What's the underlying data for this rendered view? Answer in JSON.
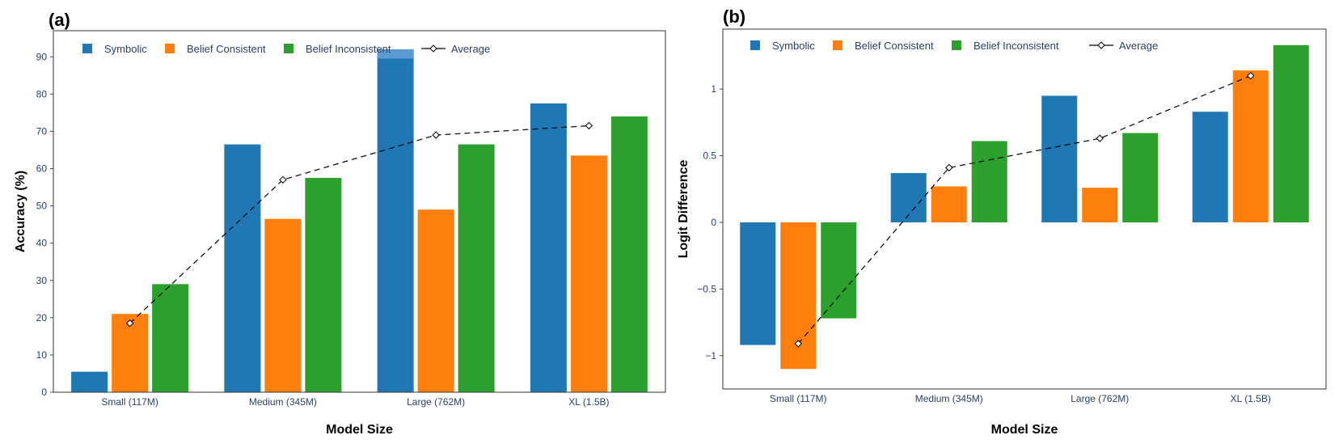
{
  "colors": {
    "symbolic": "#1f77b4",
    "belief_consistent": "#ff7f0e",
    "belief_inconsistent": "#2ca02c",
    "average": "#000000",
    "highlight": "#5b9bd5"
  },
  "chart_data": [
    {
      "id": "a",
      "panel_label": "(a)",
      "type": "bar",
      "xlabel": "Model Size",
      "ylabel": "Accuracy (%)",
      "ylim": [
        0,
        97
      ],
      "yticks": [
        0,
        10,
        20,
        30,
        40,
        50,
        60,
        70,
        80,
        90
      ],
      "ytick_labels": [
        "0",
        "10",
        "20",
        "30",
        "40",
        "50",
        "60",
        "70",
        "80",
        "90"
      ],
      "categories": [
        "Small (117M)",
        "Medium (345M)",
        "Large (762M)",
        "XL (1.5B)"
      ],
      "series": [
        {
          "name": "Symbolic",
          "key": "symbolic",
          "values": [
            5.5,
            66.5,
            92.0,
            77.5
          ]
        },
        {
          "name": "Belief Consistent",
          "key": "belief_consistent",
          "values": [
            21.0,
            46.5,
            49.0,
            63.5
          ]
        },
        {
          "name": "Belief Inconsistent",
          "key": "belief_inconsistent",
          "values": [
            29.0,
            57.5,
            66.5,
            74.0
          ]
        }
      ],
      "average": {
        "name": "Average",
        "values": [
          18.5,
          57.0,
          69.0,
          71.5
        ]
      },
      "highlight": {
        "category_index": 2,
        "series_index": 0,
        "from": 89.5,
        "to": 92.0
      },
      "legend_location": "top-left",
      "grid": false
    },
    {
      "id": "b",
      "panel_label": "(b)",
      "type": "bar",
      "xlabel": "Model Size",
      "ylabel": "Logit Difference",
      "ylim": [
        -1.25,
        1.45
      ],
      "yticks": [
        -1,
        -0.5,
        0,
        0.5,
        1
      ],
      "ytick_labels": [
        "−1",
        "−0.5",
        "0",
        "0.5",
        "1"
      ],
      "categories": [
        "Small (117M)",
        "Medium (345M)",
        "Large (762M)",
        "XL (1.5B)"
      ],
      "series": [
        {
          "name": "Symbolic",
          "key": "symbolic",
          "values": [
            -0.92,
            0.37,
            0.95,
            0.83
          ]
        },
        {
          "name": "Belief Consistent",
          "key": "belief_consistent",
          "values": [
            -1.1,
            0.27,
            0.26,
            1.14
          ]
        },
        {
          "name": "Belief Inconsistent",
          "key": "belief_inconsistent",
          "values": [
            -0.72,
            0.61,
            0.67,
            1.33
          ]
        }
      ],
      "average": {
        "name": "Average",
        "values": [
          -0.91,
          0.41,
          0.63,
          1.1
        ]
      },
      "legend_location": "top-left",
      "grid": false
    }
  ]
}
